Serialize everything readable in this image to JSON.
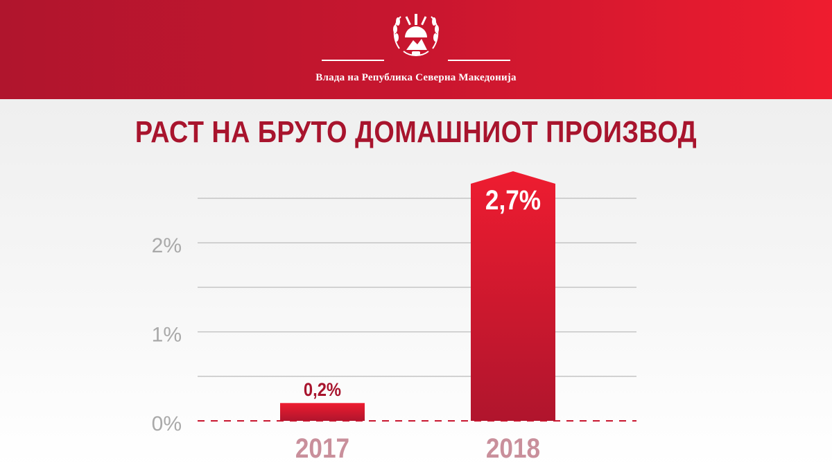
{
  "header": {
    "government_name": "Влада на Република Северна Македонија",
    "emblem_icon": "coat-of-arms-icon"
  },
  "colors": {
    "brand_red": "#c8162f",
    "title_red": "#a8142d",
    "bar_top": "#ee1c30",
    "bar_bottom": "#b0152d",
    "year_label": "#c98f9b",
    "tick_label": "#a9a9a9",
    "grid": "#c4c4c4",
    "baseline": "#c8162f"
  },
  "chart_data": {
    "type": "bar",
    "title": "РАСТ НА БРУТО ДОМАШНИОТ ПРОИЗВОД",
    "categories": [
      "2017",
      "2018"
    ],
    "values": [
      0.2,
      2.7
    ],
    "value_labels": [
      "0,2%",
      "2,7%"
    ],
    "value_label_position": [
      "above",
      "inside-top"
    ],
    "ylim": [
      0,
      2.5
    ],
    "yticks": [
      0,
      1,
      2
    ],
    "ytick_labels": [
      "0%",
      "1%",
      "2%"
    ],
    "gridline_step": 0.5,
    "grid": true,
    "baseline_dashed": true,
    "overflow_bars": [
      "2018"
    ],
    "xlabel": "",
    "ylabel": ""
  }
}
